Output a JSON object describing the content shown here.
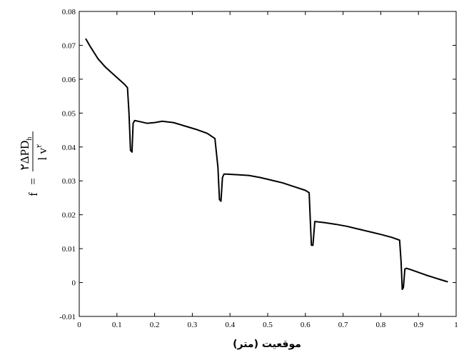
{
  "chart_data": {
    "type": "line",
    "title": "",
    "xlabel": "موقعیت (متر)",
    "ylabel": {
      "lhs": "f",
      "equals": "=",
      "numerator": "۲ΔPD",
      "numerator_sub": "h",
      "denominator": "l v",
      "denominator_sup": "۲"
    },
    "xlim": [
      0,
      1
    ],
    "ylim": [
      -0.01,
      0.08
    ],
    "x_ticks": [
      "0",
      "0.1",
      "0.2",
      "0.3",
      "0.4",
      "0.5",
      "0.6",
      "0.7",
      "0.8",
      "0.9",
      "1"
    ],
    "y_ticks": [
      "-0.01",
      "0",
      "0.01",
      "0.02",
      "0.03",
      "0.04",
      "0.05",
      "0.06",
      "0.07",
      "0.08"
    ],
    "grid": false,
    "legend": "none",
    "line_color": "#000000",
    "series": [
      {
        "x": [
          0.017,
          0.03,
          0.05,
          0.07,
          0.09,
          0.11,
          0.12,
          0.128,
          0.132,
          0.136,
          0.14,
          0.143,
          0.147,
          0.16,
          0.18,
          0.2,
          0.22,
          0.25,
          0.28,
          0.31,
          0.34,
          0.36,
          0.368,
          0.372,
          0.376,
          0.38,
          0.384,
          0.39,
          0.42,
          0.45,
          0.48,
          0.51,
          0.54,
          0.57,
          0.6,
          0.61,
          0.613,
          0.616,
          0.62,
          0.625,
          0.65,
          0.68,
          0.71,
          0.74,
          0.77,
          0.8,
          0.83,
          0.85,
          0.854,
          0.857,
          0.86,
          0.864,
          0.868,
          0.88,
          0.9,
          0.92,
          0.94,
          0.96,
          0.978
        ],
        "y": [
          0.072,
          0.0695,
          0.066,
          0.0635,
          0.0615,
          0.0595,
          0.0585,
          0.0575,
          0.05,
          0.039,
          0.0385,
          0.047,
          0.0478,
          0.0475,
          0.047,
          0.0472,
          0.0476,
          0.0472,
          0.0462,
          0.0452,
          0.044,
          0.0425,
          0.034,
          0.0245,
          0.024,
          0.031,
          0.032,
          0.032,
          0.0318,
          0.0316,
          0.031,
          0.0302,
          0.0294,
          0.0283,
          0.0272,
          0.0265,
          0.0185,
          0.011,
          0.011,
          0.018,
          0.0177,
          0.0172,
          0.0166,
          0.0158,
          0.015,
          0.0142,
          0.0133,
          0.0125,
          0.006,
          -0.002,
          -0.0015,
          0.004,
          0.0042,
          0.0038,
          0.003,
          0.0022,
          0.0015,
          0.0008,
          0.0002
        ]
      }
    ]
  }
}
